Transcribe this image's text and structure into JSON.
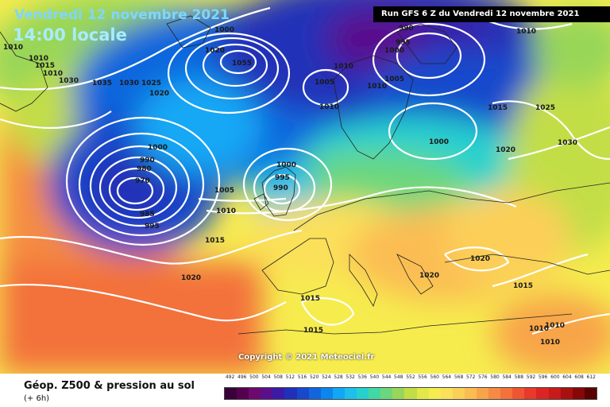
{
  "header": {
    "date_overlay": "Vendredi 12 novembre 2021",
    "time_overlay": "14:00 locale",
    "run_info": "Run GFS 6 Z du Vendredi 12 novembre 2021"
  },
  "footer": {
    "title": "Géop. Z500 & pression au sol",
    "subtitle": "(+ 6h)",
    "copyright": "Copyright © 2021 Meteociel.fr"
  },
  "isobar_labels": [
    "1010",
    "1010",
    "1015",
    "1010",
    "1030",
    "1035",
    "1030",
    "1025",
    "1020",
    "1020",
    "1055",
    "1000",
    "1010",
    "1005",
    "1010",
    "1000",
    "1005",
    "1010",
    "990",
    "995",
    "1010",
    "1015",
    "1025",
    "1000",
    "1020",
    "1030",
    "1000",
    "990",
    "980",
    "970",
    "985",
    "995",
    "1005",
    "1010",
    "1000",
    "995",
    "990",
    "1015",
    "1020",
    "1015",
    "1015",
    "1020",
    "1020",
    "1015",
    "1010",
    "1010",
    "1010"
  ],
  "legend": {
    "labels": [
      "492",
      "496",
      "500",
      "504",
      "508",
      "512",
      "516",
      "520",
      "524",
      "528",
      "532",
      "536",
      "540",
      "544",
      "548",
      "552",
      "556",
      "560",
      "564",
      "568",
      "572",
      "576",
      "580",
      "584",
      "588",
      "592",
      "596",
      "600",
      "604",
      "608",
      "612"
    ],
    "colors": [
      "#3a003a",
      "#55004f",
      "#6e0a6e",
      "#5a0f8c",
      "#3b1aa8",
      "#2030b8",
      "#1848cc",
      "#1166dd",
      "#0a86ee",
      "#12a7f5",
      "#1cc0ea",
      "#25d1cf",
      "#43d7a4",
      "#6bd77d",
      "#98d659",
      "#c2de46",
      "#e3e84a",
      "#f6ec4e",
      "#fbe05a",
      "#fccf58",
      "#fbbd52",
      "#f8a44a",
      "#f58b42",
      "#f3713b",
      "#ef5533",
      "#e8392b",
      "#dc2424",
      "#c71a1a",
      "#a91010",
      "#850707",
      "#5a0202"
    ]
  }
}
